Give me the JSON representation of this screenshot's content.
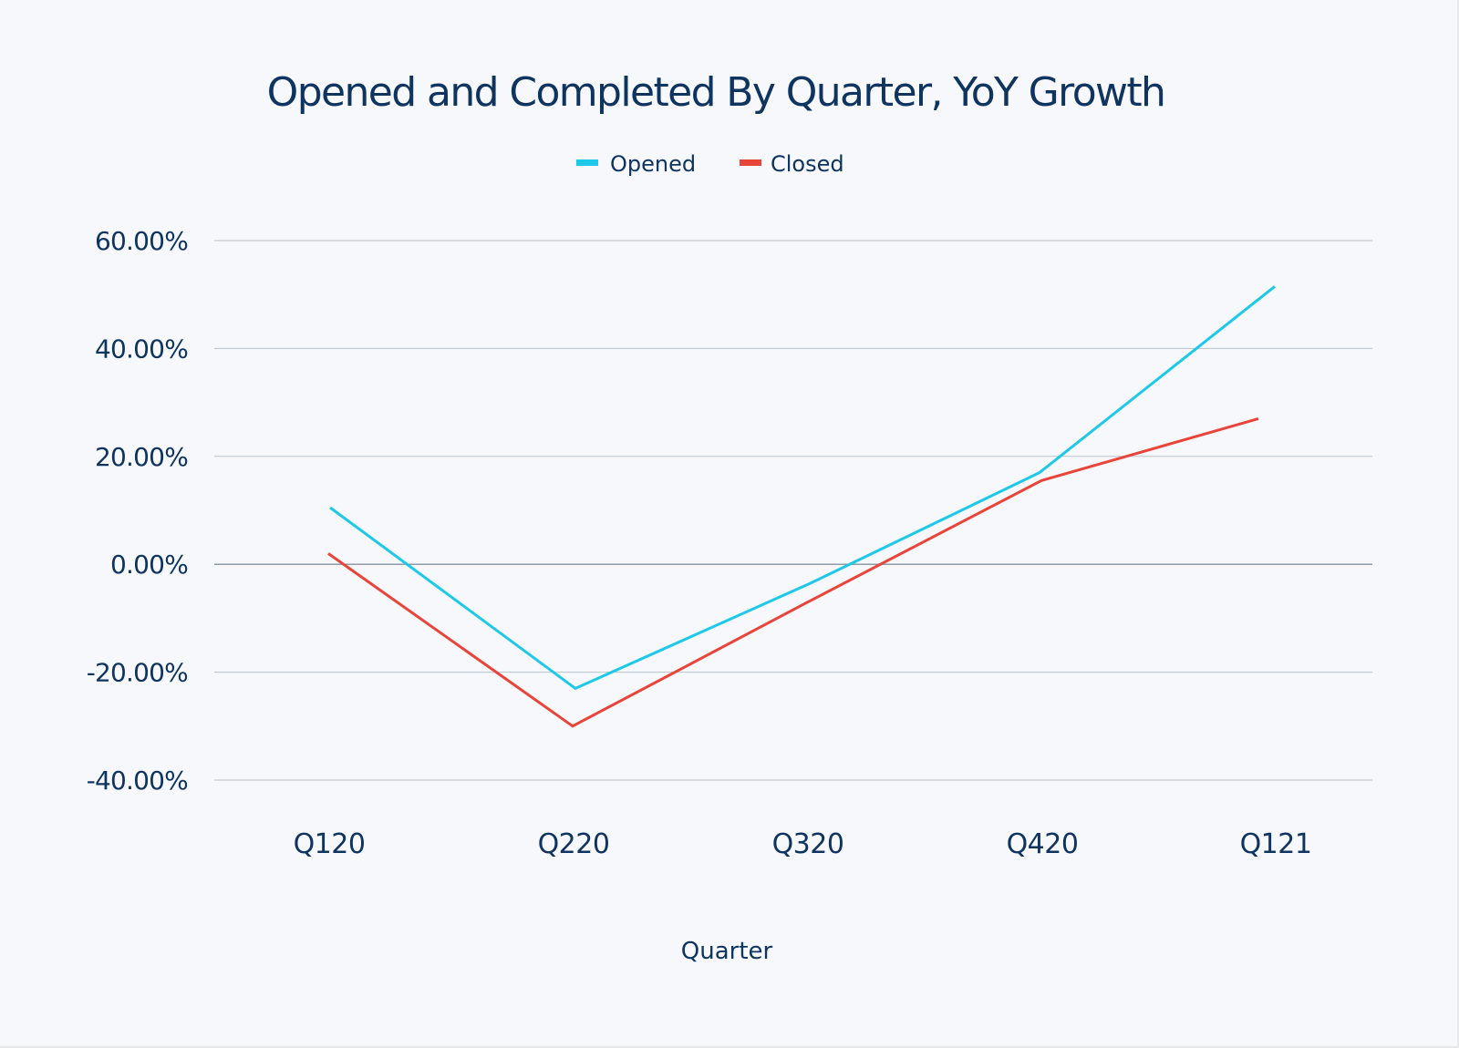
{
  "chart_data": {
    "type": "line",
    "title": "Opened and Completed By Quarter, YoY Growth",
    "xlabel": "Quarter",
    "ylabel": "",
    "categories": [
      "Q120",
      "Q220",
      "Q320",
      "Q420",
      "Q121"
    ],
    "series": [
      {
        "name": "Opened",
        "color": "#1ec8e8",
        "values": [
          10.5,
          -23.0,
          -3.5,
          17.0,
          51.5
        ]
      },
      {
        "name": "Closed",
        "color": "#e8443a",
        "values": [
          2.0,
          -30.0,
          -7.0,
          15.5,
          27.0
        ]
      }
    ],
    "ylim": [
      -40,
      60
    ],
    "yticks": [
      60,
      40,
      20,
      0,
      -20,
      -40
    ],
    "ytick_labels": [
      "60.00%",
      "40.00%",
      "20.00%",
      "0.00%",
      "-20.00%",
      "-40.00%"
    ],
    "grid": true,
    "legend_position": "top-center"
  }
}
